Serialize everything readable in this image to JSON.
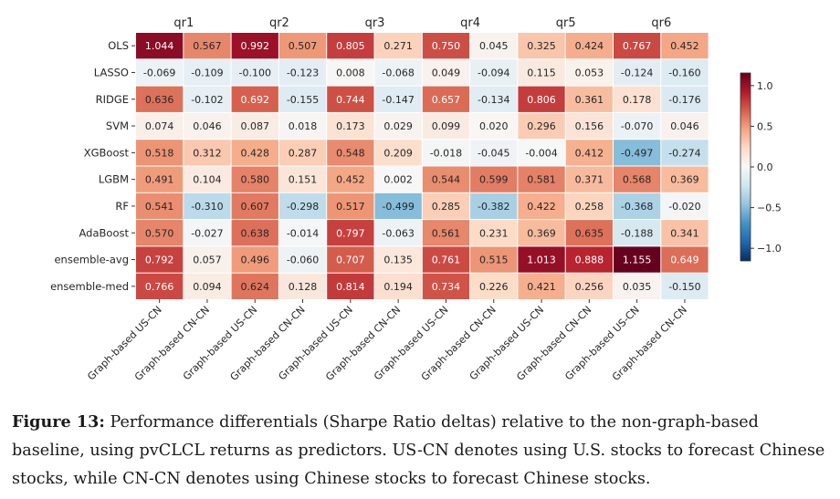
{
  "chart_data": {
    "type": "heatmap",
    "groups": [
      "qr1",
      "qr2",
      "qr3",
      "qr4",
      "qr5",
      "qr6"
    ],
    "columns": [
      "Graph-based US-CN",
      "Graph-based CN-CN"
    ],
    "rows": [
      "OLS",
      "LASSO",
      "RIDGE",
      "SVM",
      "XGBoost",
      "LGBM",
      "RF",
      "AdaBoost",
      "ensemble-avg",
      "ensemble-med"
    ],
    "values": [
      [
        1.044,
        0.567,
        0.992,
        0.507,
        0.805,
        0.271,
        0.75,
        0.045,
        0.325,
        0.424,
        0.767,
        0.452
      ],
      [
        -0.069,
        -0.109,
        -0.1,
        -0.123,
        0.008,
        -0.068,
        0.049,
        -0.094,
        0.115,
        0.053,
        -0.124,
        -0.16
      ],
      [
        0.636,
        -0.102,
        0.692,
        -0.155,
        0.744,
        -0.147,
        0.657,
        -0.134,
        0.806,
        0.361,
        0.178,
        -0.176
      ],
      [
        0.074,
        0.046,
        0.087,
        0.018,
        0.173,
        0.029,
        0.099,
        0.02,
        0.296,
        0.156,
        -0.07,
        0.046
      ],
      [
        0.518,
        0.312,
        0.428,
        0.287,
        0.548,
        0.209,
        -0.018,
        -0.045,
        -0.004,
        0.412,
        -0.497,
        -0.274
      ],
      [
        0.491,
        0.104,
        0.58,
        0.151,
        0.452,
        0.002,
        0.544,
        0.599,
        0.581,
        0.371,
        0.568,
        0.369
      ],
      [
        0.541,
        -0.31,
        0.607,
        -0.298,
        0.517,
        -0.499,
        0.285,
        -0.382,
        0.422,
        0.258,
        -0.368,
        -0.02
      ],
      [
        0.57,
        -0.027,
        0.638,
        -0.014,
        0.797,
        -0.063,
        0.561,
        0.231,
        0.369,
        0.635,
        -0.188,
        0.341
      ],
      [
        0.792,
        0.057,
        0.496,
        -0.06,
        0.707,
        0.135,
        0.761,
        0.515,
        1.013,
        0.888,
        1.155,
        0.649
      ],
      [
        0.766,
        0.094,
        0.624,
        0.128,
        0.814,
        0.194,
        0.734,
        0.226,
        0.421,
        0.256,
        0.035,
        -0.15
      ]
    ],
    "vmin": -1.155,
    "vmax": 1.155,
    "colormap": "RdBu_r",
    "colorbar_ticks": [
      1.0,
      0.5,
      0.0,
      -0.5,
      -1.0
    ],
    "colorbar_tick_labels": [
      "1.0",
      "0.5",
      "0.0",
      "−0.5",
      "−1.0"
    ]
  },
  "caption": {
    "label": "Figure 13:",
    "text": "Performance differentials (Sharpe Ratio deltas) relative to the non-graph-based baseline, using pvCLCL returns as predictors. US-CN denotes using U.S. stocks to forecast Chinese stocks, while CN-CN denotes using Chinese stocks to forecast Chinese stocks."
  }
}
